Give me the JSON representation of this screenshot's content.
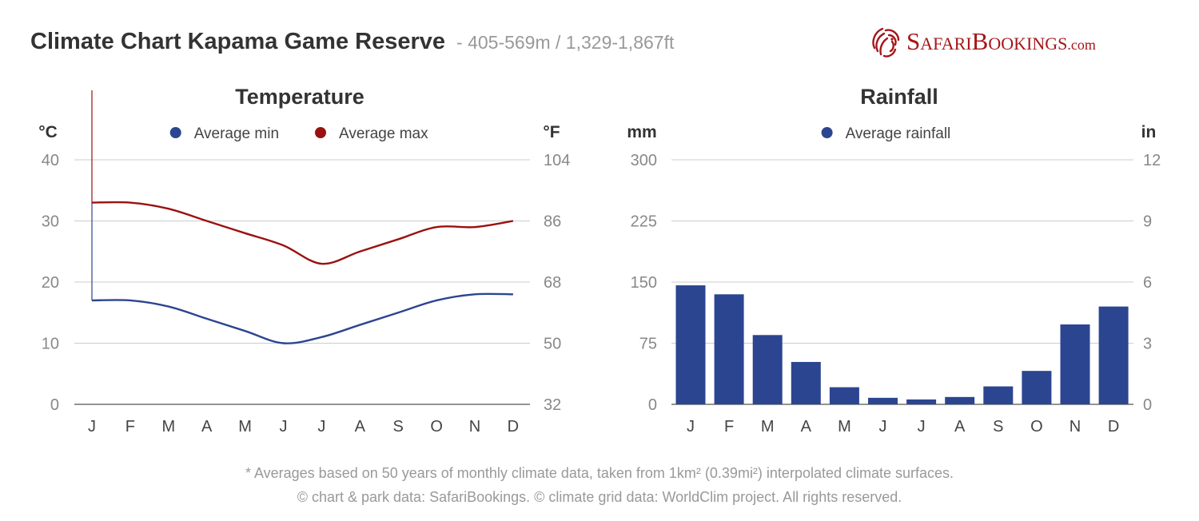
{
  "header": {
    "title": "Climate Chart Kapama Game Reserve",
    "subtitle": "- 405-569m / 1,329-1,867ft"
  },
  "logo": {
    "icon": "lion-head-icon",
    "brand_part1": "SAFARI",
    "brand_part2": "BOOKINGS",
    "brand_part3": ".COM",
    "color": "#a4161a"
  },
  "chart_data": [
    {
      "type": "line",
      "title": "Temperature",
      "ylabel": "°C",
      "ylabel_right": "°F",
      "categories": [
        "J",
        "F",
        "M",
        "A",
        "M",
        "J",
        "J",
        "A",
        "S",
        "O",
        "N",
        "D"
      ],
      "ylim": [
        0,
        40
      ],
      "yticks": [
        0,
        10,
        20,
        30,
        40
      ],
      "yticks_right": [
        32,
        50,
        68,
        86,
        104
      ],
      "grid": true,
      "legend_position": "top-center",
      "series": [
        {
          "name": "Average min",
          "color": "#2b4590",
          "values": [
            17,
            17,
            16,
            14,
            12,
            10,
            11,
            13,
            15,
            17,
            18,
            18
          ]
        },
        {
          "name": "Average max",
          "color": "#9b1010",
          "values": [
            33,
            33,
            32,
            30,
            28,
            26,
            23,
            25,
            27,
            29,
            29,
            30
          ]
        }
      ]
    },
    {
      "type": "bar",
      "title": "Rainfall",
      "ylabel": "mm",
      "ylabel_right": "in",
      "categories": [
        "J",
        "F",
        "M",
        "A",
        "M",
        "J",
        "J",
        "A",
        "S",
        "O",
        "N",
        "D"
      ],
      "ylim": [
        0,
        300
      ],
      "yticks": [
        0,
        75,
        150,
        225,
        300
      ],
      "yticks_right": [
        0,
        3,
        6,
        9,
        12
      ],
      "grid": true,
      "legend_position": "top-center",
      "series": [
        {
          "name": "Average rainfall",
          "color": "#2b4590",
          "values": [
            146,
            135,
            85,
            52,
            21,
            8,
            6,
            9,
            22,
            41,
            98,
            120
          ]
        }
      ]
    }
  ],
  "footer": {
    "note": "* Averages based on 50 years of monthly climate data, taken from 1km² (0.39mi²) interpolated climate surfaces.",
    "credits": "© chart & park data: SafariBookings. © climate grid data: WorldClim project. All rights reserved."
  }
}
